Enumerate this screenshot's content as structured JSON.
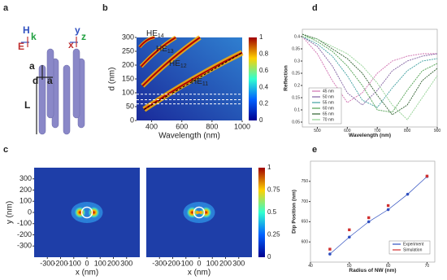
{
  "panel_labels": [
    "a",
    "b",
    "c",
    "d",
    "e"
  ],
  "diagram": {
    "labels": [
      "H",
      "k",
      "E",
      "y",
      "x",
      "z",
      "a",
      "d",
      "a",
      "L"
    ]
  },
  "chart_data": [
    {
      "type": "heatmap",
      "xlabel": "Wavelength (nm)",
      "ylabel": "d (nm)",
      "xlim": [
        300,
        1000
      ],
      "xticks": [
        400,
        600,
        800,
        1000
      ],
      "ylim": [
        0,
        300
      ],
      "yticks": [
        0,
        50,
        100,
        150,
        200,
        250,
        300
      ],
      "hlines": [
        60,
        75,
        95
      ],
      "annotations": [
        {
          "text": "HE",
          "subscript": "14"
        },
        {
          "text": "HE",
          "subscript": "13"
        },
        {
          "text": "HE",
          "subscript": "12"
        },
        {
          "text": "HE",
          "subscript": "11"
        }
      ],
      "colorbar": {
        "lim": [
          0,
          1
        ],
        "ticks": [
          0,
          0.2,
          0.4,
          0.6,
          0.8,
          1
        ]
      }
    },
    {
      "type": "heatmap",
      "xlabel": "x (nm)",
      "ylabel": "y (nm)",
      "xlim": [
        -400,
        400
      ],
      "xticks": [
        -300,
        -200,
        -100,
        0,
        100,
        200,
        300
      ],
      "ylim": [
        -400,
        400
      ],
      "yticks": [
        -300,
        -200,
        -100,
        0,
        100,
        200,
        300
      ]
    },
    {
      "type": "heatmap",
      "xlabel": "x (nm)",
      "xlim": [
        -400,
        400
      ],
      "xticks": [
        -300,
        -200,
        -100,
        0,
        100,
        200,
        300
      ],
      "ylim": [
        -400,
        400
      ],
      "colorbar": {
        "lim": [
          0,
          1
        ],
        "ticks": [
          0,
          0.25,
          0.5,
          0.75,
          1
        ]
      }
    },
    {
      "type": "line",
      "xlabel": "Wavelength (nm)",
      "ylabel": "Reflection",
      "xlim": [
        450,
        900
      ],
      "xticks": [
        500,
        600,
        700,
        800,
        900
      ],
      "ylim": [
        0.03,
        0.43
      ],
      "yticks": [
        0.05,
        0.1,
        0.15,
        0.2,
        0.25,
        0.3,
        0.35,
        0.4
      ],
      "x": [
        450,
        500,
        550,
        600,
        650,
        700,
        750,
        800,
        850,
        900
      ],
      "series": [
        {
          "name": "45 nm",
          "color": "#d070b0",
          "values": [
            0.4,
            0.33,
            0.22,
            0.13,
            0.17,
            0.25,
            0.3,
            0.32,
            0.33,
            0.33
          ]
        },
        {
          "name": "50 nm",
          "color": "#8060a0",
          "values": [
            0.4,
            0.36,
            0.28,
            0.17,
            0.12,
            0.18,
            0.26,
            0.3,
            0.32,
            0.33
          ]
        },
        {
          "name": "55 nm",
          "color": "#40a0a0",
          "values": [
            0.4,
            0.37,
            0.32,
            0.24,
            0.14,
            0.11,
            0.19,
            0.26,
            0.3,
            0.31
          ]
        },
        {
          "name": "60 nm",
          "color": "#50a050",
          "values": [
            0.41,
            0.38,
            0.34,
            0.28,
            0.2,
            0.1,
            0.09,
            0.18,
            0.26,
            0.29
          ]
        },
        {
          "name": "65 nm",
          "color": "#306030",
          "values": [
            0.41,
            0.39,
            0.35,
            0.31,
            0.25,
            0.16,
            0.08,
            0.12,
            0.22,
            0.27
          ]
        },
        {
          "name": "70 nm",
          "color": "#90d090",
          "values": [
            0.4,
            0.39,
            0.36,
            0.33,
            0.28,
            0.21,
            0.12,
            0.06,
            0.15,
            0.24
          ]
        }
      ]
    },
    {
      "type": "scatter",
      "xlabel": "Radius of NW (nm)",
      "ylabel": "Dip Position (nm)",
      "xlim": [
        40,
        72
      ],
      "xticks": [
        40,
        50,
        60,
        70
      ],
      "ylim": [
        550,
        800
      ],
      "yticks": [
        600,
        650,
        700,
        750
      ],
      "series": [
        {
          "name": "Experiment",
          "color": "#3050c0",
          "line": true,
          "x": [
            45,
            50,
            55,
            60,
            65,
            70
          ],
          "values": [
            570,
            612,
            650,
            680,
            718,
            762
          ]
        },
        {
          "name": "Simulation",
          "color": "#d03030",
          "line": false,
          "x": [
            45,
            50,
            55,
            60,
            70
          ],
          "values": [
            582,
            630,
            660,
            690,
            763
          ]
        }
      ]
    }
  ]
}
